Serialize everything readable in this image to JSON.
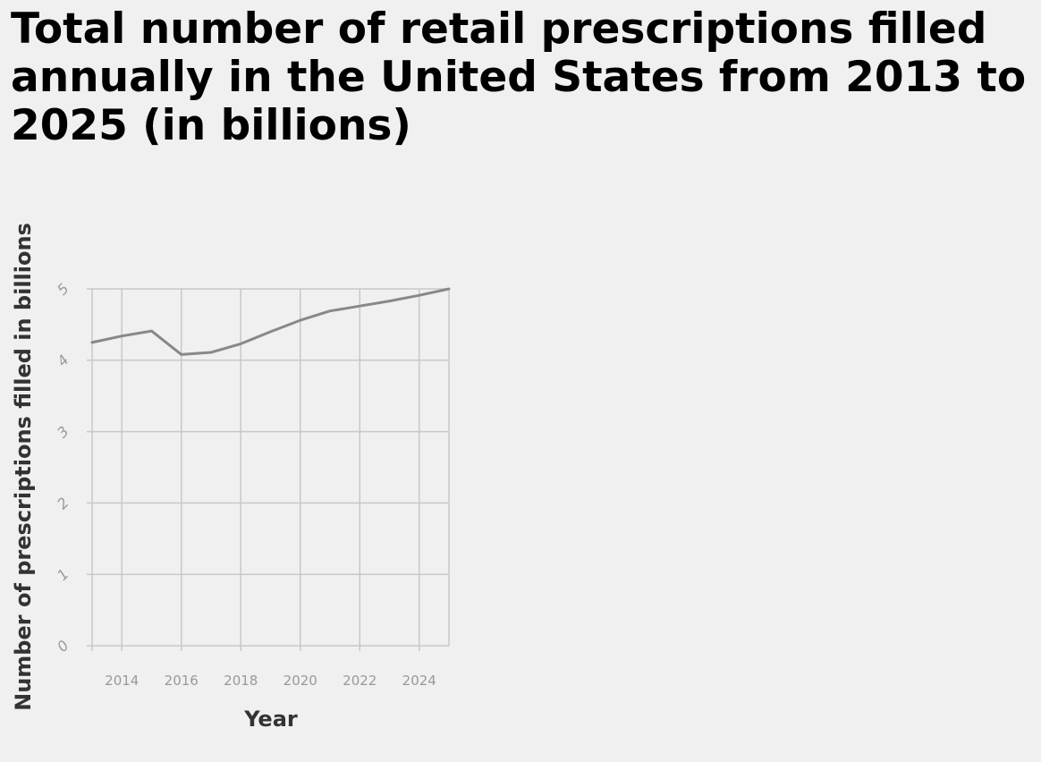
{
  "chart_data": {
    "type": "line",
    "title": "Total number of retail prescriptions filled annually in the United States from 2013 to 2025 (in billions)",
    "xlabel": "Year",
    "ylabel": "Number of prescriptions filled in billions",
    "xlim": [
      2013,
      2025
    ],
    "ylim": [
      0,
      5
    ],
    "x_ticks": [
      2014,
      2016,
      2018,
      2020,
      2022,
      2024
    ],
    "y_ticks": [
      0,
      1,
      2,
      3,
      4,
      5
    ],
    "grid": true,
    "line_color": "#888888",
    "series": [
      {
        "x": [
          2013,
          2014,
          2015,
          2016,
          2017,
          2018,
          2019,
          2020,
          2021,
          2022,
          2023,
          2024,
          2025
        ],
        "values": [
          4.25,
          4.34,
          4.41,
          4.08,
          4.11,
          4.23,
          4.4,
          4.56,
          4.69,
          4.76,
          4.83,
          4.91,
          5.0
        ]
      }
    ]
  }
}
